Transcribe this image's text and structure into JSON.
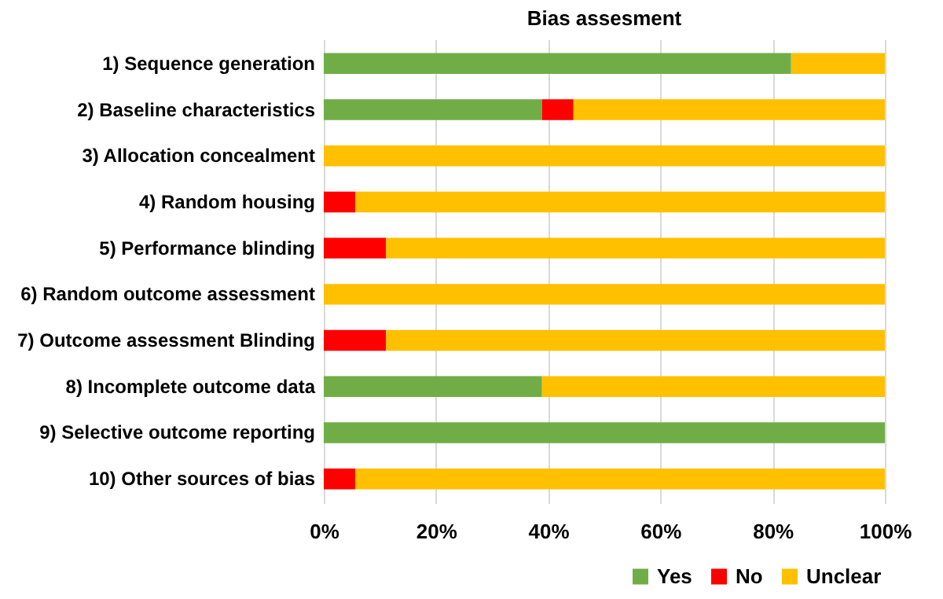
{
  "chart_data": {
    "type": "bar",
    "orientation": "horizontal",
    "stacked": true,
    "title": "Bias assesment",
    "categories": [
      "1) Sequence generation",
      "2) Baseline characteristics",
      "3) Allocation concealment",
      "4) Random housing",
      "5) Performance blinding",
      "6) Random outcome assessment",
      "7) Outcome assessment Blinding",
      "8) Incomplete outcome data",
      "9) Selective outcome reporting",
      "10) Other sources of bias"
    ],
    "series": [
      {
        "name": "Yes",
        "color": "#70ad47",
        "values": [
          83.3,
          38.9,
          0,
          0,
          0,
          0,
          0,
          38.9,
          100,
          0
        ]
      },
      {
        "name": "No",
        "color": "#ff0000",
        "values": [
          0,
          5.6,
          0,
          5.6,
          11.1,
          0,
          11.1,
          0,
          0,
          5.6
        ]
      },
      {
        "name": "Unclear",
        "color": "#ffc000",
        "values": [
          16.7,
          55.5,
          100,
          94.4,
          88.9,
          100,
          88.9,
          61.1,
          0,
          94.4
        ]
      }
    ],
    "xlim": [
      0,
      100
    ],
    "xticks": [
      {
        "value": 0,
        "label": "0%"
      },
      {
        "value": 20,
        "label": "20%"
      },
      {
        "value": 40,
        "label": "40%"
      },
      {
        "value": 60,
        "label": "60%"
      },
      {
        "value": 80,
        "label": "80%"
      },
      {
        "value": 100,
        "label": "100%"
      }
    ],
    "grid": "x",
    "legend": "bottom right"
  }
}
